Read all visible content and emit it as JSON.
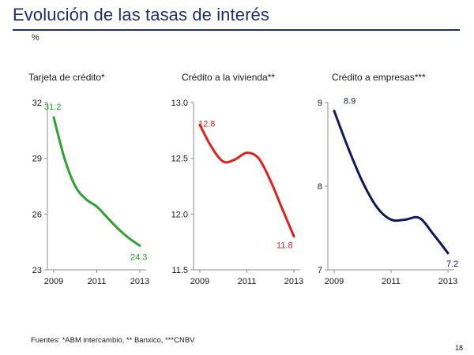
{
  "slide": {
    "title": "Evolución de las tasas de interés",
    "unit": "%",
    "footer": "Fuentes: *ABM intercambio, ** Banxico, ***CNBV",
    "page_number": "18"
  },
  "chart_data": [
    {
      "type": "line",
      "title": "Tarjeta de crédito*",
      "x_ticks": [
        "2009",
        "2011",
        "2013"
      ],
      "y_ticks": [
        "32",
        "29",
        "26",
        "23"
      ],
      "ylim": [
        23,
        32
      ],
      "x": [
        2009,
        2009.5,
        2010,
        2010.5,
        2011,
        2011.5,
        2012,
        2012.5,
        2013
      ],
      "values": [
        31.2,
        29.0,
        27.5,
        26.8,
        26.4,
        25.8,
        25.2,
        24.7,
        24.3
      ],
      "start_label": "31.2",
      "end_label": "24.3",
      "color": "#2ea12e"
    },
    {
      "type": "line",
      "title": "Crédito a la vivienda**",
      "x_ticks": [
        "2009",
        "2011",
        "2013"
      ],
      "y_ticks": [
        "13.0",
        "12.5",
        "12.0",
        "11.5"
      ],
      "ylim": [
        11.5,
        13.0
      ],
      "x": [
        2009,
        2009.5,
        2010,
        2010.5,
        2011,
        2011.5,
        2012,
        2012.5,
        2013
      ],
      "values": [
        12.8,
        12.6,
        12.47,
        12.49,
        12.55,
        12.5,
        12.3,
        12.05,
        11.8
      ],
      "start_label": "12.8",
      "end_label": "11.8",
      "color": "#e0201a"
    },
    {
      "type": "line",
      "title": "Crédito a empresas***",
      "x_ticks": [
        "2009",
        "2011",
        "2013"
      ],
      "y_ticks": [
        "9",
        "8",
        "7"
      ],
      "ylim": [
        7,
        9
      ],
      "x": [
        2009,
        2009.5,
        2010,
        2010.5,
        2011,
        2011.5,
        2012,
        2012.5,
        2013
      ],
      "values": [
        8.9,
        8.45,
        8.05,
        7.75,
        7.6,
        7.6,
        7.62,
        7.42,
        7.2
      ],
      "start_label": "8.9",
      "end_label": "7.2",
      "color": "#0f1a5c"
    }
  ]
}
